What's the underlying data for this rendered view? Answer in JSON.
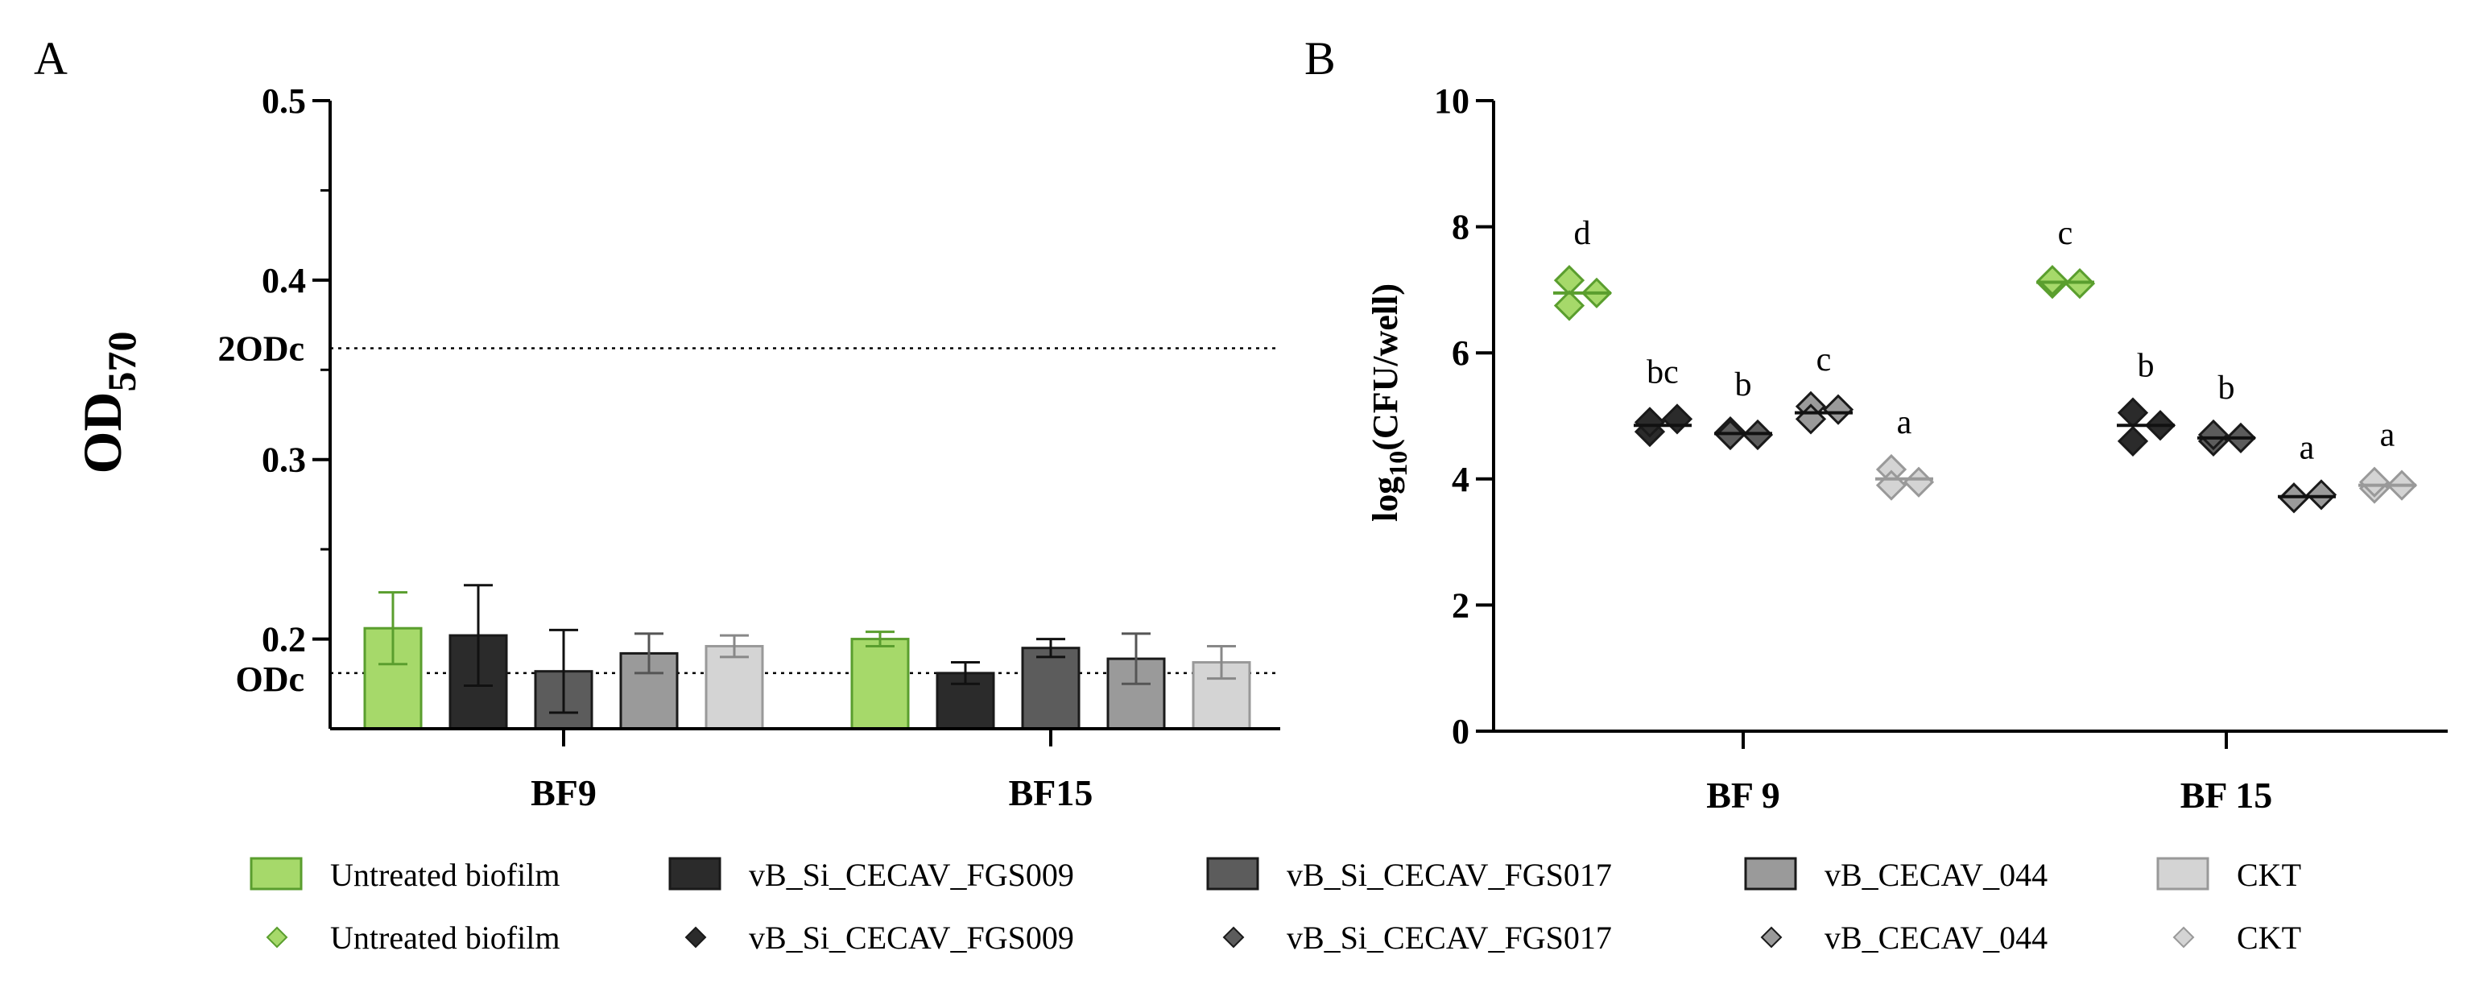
{
  "colors": {
    "untreated": "#a6d96a",
    "untreated_edge": "#5a9e2e",
    "fgs009": "#2b2b2b",
    "fgs017": "#5c5c5c",
    "cecav044": "#9a9a9a",
    "ckt": "#d4d4d4"
  },
  "legend": {
    "entries": [
      {
        "label": "Untreated biofilm",
        "color_key": "untreated"
      },
      {
        "label": "vB_Si_CECAV_FGS009",
        "color_key": "fgs009"
      },
      {
        "label": "vB_Si_CECAV_FGS017",
        "color_key": "fgs017"
      },
      {
        "label": "vB_CECAV_044",
        "color_key": "cecav044"
      },
      {
        "label": "CKT",
        "color_key": "ckt"
      }
    ]
  },
  "chart_data": [
    {
      "panel": "A",
      "type": "bar",
      "title": "",
      "xlabel": "",
      "ylabel": "OD570",
      "ylabel_main": "OD",
      "ylabel_sub": "570",
      "ylim": [
        0.15,
        0.5
      ],
      "yticks": [
        0.2,
        0.3,
        0.4,
        0.5
      ],
      "yticks_labels": [
        "0.2",
        "0.3",
        "0.4",
        "0.5"
      ],
      "categories": [
        "BF9",
        "BF15"
      ],
      "reference_lines": [
        {
          "label": "ODc",
          "value": 0.181
        },
        {
          "label": "2ODc",
          "value": 0.362
        }
      ],
      "series": [
        {
          "name": "Untreated biofilm",
          "values": [
            0.206,
            0.2
          ],
          "errors": [
            0.02,
            0.004
          ]
        },
        {
          "name": "vB_Si_CECAV_FGS009",
          "values": [
            0.202,
            0.181
          ],
          "errors": [
            0.028,
            0.006
          ]
        },
        {
          "name": "vB_Si_CECAV_FGS017",
          "values": [
            0.182,
            0.195
          ],
          "errors": [
            0.023,
            0.005
          ]
        },
        {
          "name": "vB_CECAV_044",
          "values": [
            0.192,
            0.189
          ],
          "errors": [
            0.011,
            0.014
          ]
        },
        {
          "name": "CKT",
          "values": [
            0.196,
            0.187
          ],
          "errors": [
            0.006,
            0.009
          ]
        }
      ]
    },
    {
      "panel": "B",
      "type": "scatter",
      "title": "",
      "xlabel": "",
      "ylabel": "log10(CFU/well)",
      "ylabel_main": "log",
      "ylabel_sub": "10",
      "ylabel_rest": "(CFU/well)",
      "ylim": [
        0,
        10
      ],
      "yticks": [
        0,
        2,
        4,
        6,
        8,
        10
      ],
      "yticks_labels": [
        "0",
        "2",
        "4",
        "6",
        "8",
        "10"
      ],
      "categories": [
        "BF 9",
        "BF 15"
      ],
      "series": [
        {
          "name": "Untreated biofilm",
          "points": [
            [
              7.15,
              6.75,
              6.95
            ],
            [
              7.1,
              7.15,
              7.1
            ]
          ],
          "means": [
            6.95,
            7.12
          ],
          "letters": [
            "d",
            "c"
          ]
        },
        {
          "name": "vB_Si_CECAV_FGS009",
          "points": [
            [
              4.75,
              4.9,
              4.95
            ],
            [
              5.05,
              4.6,
              4.85
            ]
          ],
          "means": [
            4.85,
            4.85
          ],
          "letters": [
            "bc",
            "b"
          ]
        },
        {
          "name": "vB_Si_CECAV_FGS017",
          "points": [
            [
              4.75,
              4.7,
              4.7
            ],
            [
              4.6,
              4.7,
              4.65
            ]
          ],
          "means": [
            4.72,
            4.65
          ],
          "letters": [
            "b",
            "b"
          ]
        },
        {
          "name": "vB_CECAV_044",
          "points": [
            [
              5.15,
              4.95,
              5.1
            ],
            [
              3.7,
              3.7,
              3.75
            ]
          ],
          "means": [
            5.05,
            3.72
          ],
          "letters": [
            "c",
            "a"
          ]
        },
        {
          "name": "CKT",
          "points": [
            [
              4.15,
              3.9,
              3.95
            ],
            [
              3.85,
              3.95,
              3.9
            ]
          ],
          "means": [
            4.0,
            3.9
          ],
          "letters": [
            "a",
            "a"
          ]
        }
      ]
    }
  ]
}
